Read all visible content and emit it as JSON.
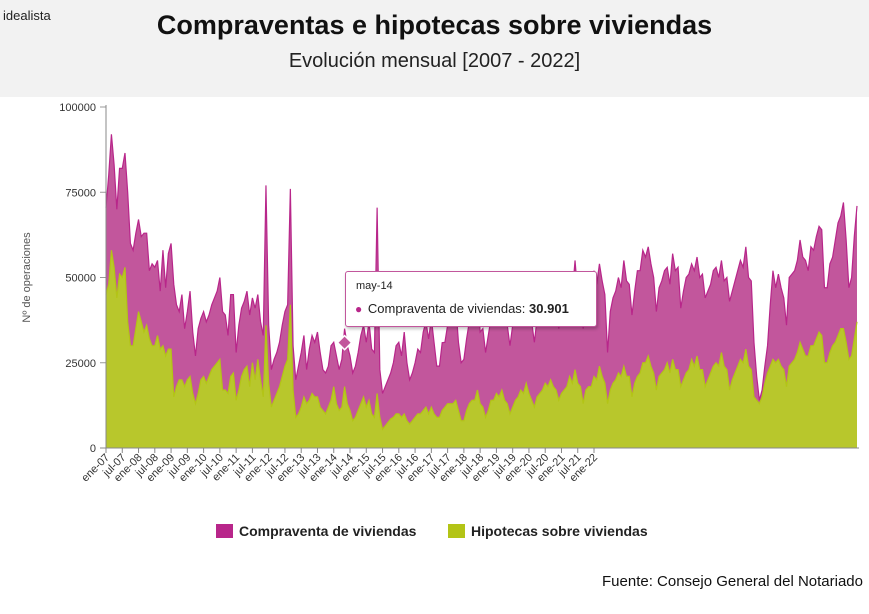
{
  "header": {
    "logo": "idealista",
    "title": "Compraventas e hipotecas sobre viviendas",
    "subtitle": "Evolución mensual [2007 - 2022]"
  },
  "source": "Fuente: Consejo General del Notariado",
  "tooltip": {
    "month": "may-14",
    "series": "Compraventa de viviendas:",
    "value": "30.901"
  },
  "colors": {
    "compraventa": "#b8268a",
    "compraventa_fill": "#c2569c",
    "hipotecas": "#b3c416",
    "hipotecas_fill": "#b8c72c"
  },
  "chart_data": {
    "type": "area",
    "ylabel": "Nº de operaciones",
    "ylim": [
      0,
      100000
    ],
    "yticks": [
      0,
      25000,
      50000,
      75000,
      100000
    ],
    "ytick_labels": [
      "0",
      "25000",
      "50000",
      "75000",
      "100000"
    ],
    "xtick_labels": [
      "ene-07",
      "jul-07",
      "ene-08",
      "jul-08",
      "ene-09",
      "jul-09",
      "ene-10",
      "jul-10",
      "ene-11",
      "jul-11",
      "ene-12",
      "jul-12",
      "ene-13",
      "jul-13",
      "ene-14",
      "jul-14",
      "ene-15",
      "jul-15",
      "ene-16",
      "jul-16",
      "ene-17",
      "jul-17",
      "ene-18",
      "jul-18",
      "ene-19",
      "jul-19",
      "ene-20",
      "jul-20",
      "ene-21",
      "jul-21",
      "ene-22"
    ],
    "x_start": "ene-07",
    "x_end": "abr-22",
    "legend_position": "bottom",
    "series": [
      {
        "name": "Compraventa de viviendas",
        "values": [
          70500,
          80000,
          92000,
          83000,
          70000,
          82000,
          82000,
          86500,
          75000,
          60000,
          58000,
          63000,
          67000,
          62000,
          63000,
          63000,
          52000,
          54000,
          53000,
          55000,
          46000,
          58000,
          47000,
          57000,
          60000,
          48000,
          42000,
          40000,
          45000,
          35000,
          40000,
          46000,
          34000,
          27000,
          35000,
          38000,
          40000,
          37000,
          39000,
          42000,
          44000,
          46000,
          50000,
          40000,
          39000,
          33000,
          45000,
          45000,
          28000,
          36000,
          41000,
          43000,
          46000,
          39000,
          44000,
          41000,
          45000,
          37000,
          33000,
          77000,
          36000,
          23000,
          26000,
          28000,
          31000,
          36000,
          40000,
          42000,
          76000,
          30000,
          20000,
          24000,
          28000,
          33000,
          23000,
          29000,
          33000,
          31000,
          34000,
          28000,
          23000,
          22000,
          24000,
          30000,
          31000,
          27000,
          23000,
          26000,
          35000,
          30000,
          27000,
          22000,
          24000,
          28000,
          33000,
          36000,
          31000,
          37000,
          29000,
          28000,
          70500,
          23000,
          16000,
          18000,
          20000,
          22000,
          25000,
          30000,
          31000,
          27000,
          34000,
          25000,
          20000,
          22000,
          25000,
          29000,
          28000,
          34000,
          37000,
          32000,
          38000,
          31000,
          24000,
          24000,
          30901,
          31000,
          36000,
          38000,
          37000,
          42000,
          31000,
          25000,
          26000,
          32000,
          37000,
          39000,
          38000,
          47000,
          34000,
          35000,
          28000,
          33000,
          38000,
          38000,
          43000,
          41000,
          48000,
          39000,
          36000,
          30000,
          36000,
          38000,
          39000,
          44000,
          42000,
          47000,
          41000,
          37000,
          31000,
          38000,
          40000,
          42000,
          47000,
          43000,
          50000,
          43000,
          40000,
          35000,
          40000,
          42000,
          43000,
          49000,
          45000,
          55000,
          45000,
          43000,
          35000,
          42000,
          45000,
          45000,
          52000,
          48000,
          54000,
          49000,
          45000,
          28000,
          40000,
          44000,
          46000,
          50000,
          47000,
          55000,
          49000,
          48000,
          39000,
          46000,
          52000,
          52000,
          58000,
          56000,
          59000,
          54000,
          50000,
          40000,
          47000,
          49000,
          52000,
          53000,
          48000,
          57000,
          52000,
          53000,
          41000,
          46000,
          50000,
          51000,
          54000,
          52000,
          56000,
          50000,
          51000,
          44000,
          46000,
          48000,
          52000,
          53000,
          50000,
          55000,
          49000,
          50000,
          43000,
          46000,
          49000,
          52000,
          55000,
          53000,
          59000,
          50000,
          49000,
          31000,
          21000,
          14000,
          17000,
          24000,
          30000,
          42000,
          52000,
          47000,
          51000,
          47000,
          44000,
          36000,
          50000,
          51000,
          52000,
          55000,
          61000,
          56000,
          55000,
          52000,
          59000,
          58000,
          62000,
          65000,
          64000,
          47000,
          47000,
          54000,
          56000,
          61000,
          66000,
          68000,
          72000,
          61000,
          47000,
          50000,
          62000,
          71000
        ]
      },
      {
        "name": "Hipotecas sobre viviendas",
        "values": [
          45000,
          48000,
          58000,
          53000,
          44000,
          51000,
          50000,
          53000,
          37000,
          30000,
          30000,
          35000,
          40000,
          37000,
          34000,
          36000,
          32000,
          30000,
          30000,
          33000,
          29000,
          30000,
          27000,
          29000,
          29000,
          15000,
          18000,
          20000,
          20000,
          18000,
          20000,
          21000,
          16000,
          13000,
          16000,
          20000,
          21000,
          19000,
          21000,
          23000,
          24000,
          25000,
          26000,
          17000,
          17000,
          16000,
          21000,
          22000,
          14000,
          17000,
          21000,
          23000,
          24000,
          18000,
          25000,
          20000,
          26000,
          20000,
          15000,
          36000,
          19000,
          12000,
          14000,
          16000,
          18000,
          21000,
          24000,
          26000,
          42000,
          17000,
          9000,
          10000,
          12000,
          15000,
          13000,
          14000,
          16000,
          15000,
          15000,
          12000,
          11000,
          10000,
          12000,
          14000,
          18000,
          13000,
          11000,
          12000,
          18000,
          13000,
          11000,
          8000,
          9000,
          11000,
          13000,
          15000,
          12000,
          14000,
          10000,
          9000,
          16000,
          9000,
          5500,
          6500,
          7500,
          8500,
          9000,
          10000,
          10000,
          9000,
          10000,
          8000,
          7000,
          8000,
          9000,
          10000,
          10000,
          11000,
          12000,
          10000,
          12000,
          10000,
          9000,
          9000,
          11000,
          12000,
          13000,
          13000,
          13000,
          14000,
          11000,
          8000,
          8000,
          11000,
          13000,
          14000,
          14000,
          17000,
          13000,
          12000,
          9000,
          11000,
          14000,
          14000,
          16000,
          15000,
          17000,
          14000,
          13000,
          10000,
          12000,
          14000,
          15000,
          17000,
          16000,
          19000,
          16000,
          14000,
          12000,
          15000,
          16000,
          17000,
          19000,
          18000,
          20000,
          18000,
          17000,
          14000,
          16000,
          17000,
          18000,
          21000,
          19000,
          23000,
          19000,
          18000,
          13000,
          17000,
          18000,
          18000,
          21000,
          20000,
          24000,
          21000,
          19000,
          13000,
          17000,
          19000,
          20000,
          22000,
          21000,
          24000,
          21000,
          21000,
          15000,
          19000,
          21000,
          22000,
          25000,
          25000,
          27000,
          24000,
          22000,
          17000,
          21000,
          22000,
          23000,
          25000,
          22000,
          26000,
          23000,
          23000,
          18000,
          20000,
          22000,
          23000,
          26000,
          24000,
          27000,
          23000,
          23000,
          18000,
          20000,
          22000,
          24000,
          25000,
          24000,
          28000,
          24000,
          23000,
          17000,
          20000,
          22000,
          24000,
          26000,
          25000,
          29000,
          24000,
          23000,
          15000,
          14000,
          13000,
          15000,
          19000,
          22000,
          24000,
          26000,
          25000,
          26000,
          24000,
          23000,
          18000,
          24000,
          25000,
          26000,
          28000,
          31000,
          29000,
          27000,
          27000,
          30000,
          30000,
          32000,
          34000,
          33000,
          25000,
          25000,
          28000,
          30000,
          31000,
          33000,
          35000,
          35000,
          31000,
          26000,
          27000,
          32000,
          37000
        ]
      }
    ]
  },
  "legend": {
    "compraventa": "Compraventa de viviendas",
    "hipotecas": "Hipotecas sobre viviendas"
  }
}
